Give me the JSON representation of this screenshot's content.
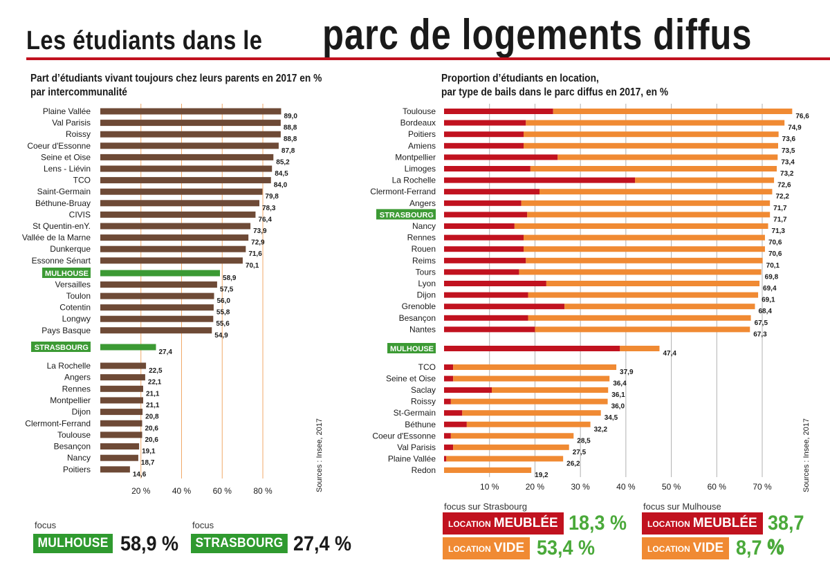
{
  "title": {
    "part1": "Les étudiants dans le",
    "part2": "parc de logements diffus"
  },
  "colors": {
    "brown": "#6e4a36",
    "green": "#3c9a34",
    "red": "#c1121f",
    "orange": "#f08a33",
    "valueGreen": "#4aa93a",
    "grid": "#f0a868",
    "grid2": "#b0b0b0"
  },
  "left_chart": {
    "subtitle_lines": [
      "Part d’étudiants vivant toujours chez leurs parents en 2017 en %",
      "par intercommunalité"
    ],
    "source": "Sources : Insee, 2017"
  },
  "right_chart": {
    "subtitle_lines": [
      "Proportion d’étudiants en location,",
      "par type de bails dans le parc diffus en 2017, en %"
    ],
    "source": "Sources : Insee, 2017"
  },
  "chart_data": [
    {
      "type": "bar",
      "orientation": "horizontal",
      "title": "Part d’étudiants vivant toujours chez leurs parents en 2017 en % par intercommunalité",
      "xlim": [
        0,
        100
      ],
      "xticks": [
        "20 %",
        "40 %",
        "60 %",
        "80 %"
      ],
      "xtick_values": [
        20,
        40,
        60,
        80
      ],
      "categories": [
        "Plaine Vallée",
        "Val Parisis",
        "Roissy",
        "Coeur d'Essonne",
        "Seine et Oise",
        "Lens - Liévin",
        "TCO",
        "Saint-Germain",
        "Béthune-Bruay",
        "CIVIS",
        "St Quentin-enY.",
        "Vallée de la Marne",
        "Dunkerque",
        "Essonne Sénart",
        "MULHOUSE",
        "Versailles",
        "Toulon",
        "Cotentin",
        "Longwy",
        "Pays Basque",
        "STRASBOURG",
        "La Rochelle",
        "Angers",
        "Rennes",
        "Montpellier",
        "Dijon",
        "Clermont-Ferrand",
        "Toulouse",
        "Besançon",
        "Nancy",
        "Poitiers"
      ],
      "values": [
        89.0,
        88.8,
        88.8,
        87.8,
        85.2,
        84.5,
        84.0,
        79.8,
        78.3,
        76.4,
        73.9,
        72.9,
        71.6,
        70.1,
        58.9,
        57.5,
        56.0,
        55.8,
        55.6,
        54.9,
        27.4,
        22.5,
        22.1,
        21.1,
        21.1,
        20.8,
        20.6,
        20.6,
        19.1,
        18.7,
        14.6
      ],
      "value_labels": [
        "89,0",
        "88,8",
        "88,8",
        "87,8",
        "85,2",
        "84,5",
        "84,0",
        "79,8",
        "78,3",
        "76,4",
        "73,9",
        "72,9",
        "71,6",
        "70,1",
        "58,9",
        "57,5",
        "56,0",
        "55,8",
        "55,6",
        "54,9",
        "27,4",
        "22,5",
        "22,1",
        "21,1",
        "21,1",
        "20,8",
        "20,6",
        "20,6",
        "19,1",
        "18,7",
        "14,6"
      ],
      "highlighted": [
        "MULHOUSE",
        "STRASBOURG"
      ]
    },
    {
      "type": "bar",
      "orientation": "horizontal",
      "stacked": true,
      "title": "Proportion d’étudiants en location, par type de bails dans le parc diffus en 2017, en %",
      "xlim": [
        0,
        80
      ],
      "xticks": [
        "10 %",
        "20 %",
        "30 %",
        "40 %",
        "50 %",
        "60 %",
        "70 %"
      ],
      "xtick_values": [
        10,
        20,
        30,
        40,
        50,
        60,
        70
      ],
      "categories": [
        "Toulouse",
        "Bordeaux",
        "Poitiers",
        "Amiens",
        "Montpellier",
        "Limoges",
        "La Rochelle",
        "Clermont-Ferrand",
        "Angers",
        "STRASBOURG",
        "Nancy",
        "Rennes",
        "Rouen",
        "Reims",
        "Tours",
        "Lyon",
        "Dijon",
        "Grenoble",
        "Besançon",
        "Nantes",
        "MULHOUSE",
        "TCO",
        "Seine et Oise",
        "Saclay",
        "Roissy",
        "St-Germain",
        "Béthune",
        "Coeur d'Essonne",
        "Val Parisis",
        "Plaine Vallée",
        "Redon"
      ],
      "series": [
        {
          "name": "Location meublée",
          "values": [
            24.0,
            18.0,
            17.5,
            17.5,
            25.0,
            19.0,
            42.0,
            21.0,
            17.0,
            18.3,
            15.5,
            17.5,
            17.5,
            18.0,
            16.5,
            22.5,
            18.5,
            26.5,
            18.5,
            20.0,
            38.7,
            2.0,
            2.0,
            10.5,
            1.5,
            4.0,
            5.0,
            1.5,
            2.0,
            0.5,
            0.0
          ]
        },
        {
          "name": "Location vide",
          "values": [
            52.6,
            56.9,
            56.1,
            56.0,
            48.4,
            54.2,
            30.6,
            51.2,
            54.7,
            53.4,
            55.8,
            53.1,
            53.1,
            52.1,
            53.3,
            46.9,
            50.6,
            41.9,
            49.0,
            47.3,
            8.7,
            35.9,
            34.4,
            25.6,
            34.5,
            30.5,
            27.2,
            27.0,
            25.5,
            25.7,
            19.2
          ]
        }
      ],
      "totals": [
        76.6,
        74.9,
        73.6,
        73.5,
        73.4,
        73.2,
        72.6,
        72.2,
        71.7,
        71.7,
        71.3,
        70.6,
        70.6,
        70.1,
        69.8,
        69.4,
        69.1,
        68.4,
        67.5,
        67.3,
        47.4,
        37.9,
        36.4,
        36.1,
        36.0,
        34.5,
        32.2,
        28.5,
        27.5,
        26.2,
        19.2
      ],
      "total_labels": [
        "76,6",
        "74,9",
        "73,6",
        "73,5",
        "73,4",
        "73,2",
        "72,6",
        "72,2",
        "71,7",
        "71,7",
        "71,3",
        "70,6",
        "70,6",
        "70,1",
        "69,8",
        "69,4",
        "69,1",
        "68,4",
        "67,5",
        "67,3",
        "47,4",
        "37,9",
        "36,4",
        "36,1",
        "36,0",
        "34,5",
        "32,2",
        "28,5",
        "27,5",
        "26,2",
        "19,2"
      ],
      "highlighted": [
        "STRASBOURG",
        "MULHOUSE"
      ]
    }
  ],
  "focus_left": [
    {
      "label": "focus",
      "city": "MULHOUSE",
      "value": "58,9 %"
    },
    {
      "label": "focus",
      "city": "STRASBOURG",
      "value": "27,4 %"
    }
  ],
  "focus_right": [
    {
      "label": "focus sur Strasbourg",
      "meublee_small": "LOCATION",
      "meublee_big": "MEUBLÉE",
      "meublee_value": "18,3 %",
      "vide_small": "LOCATION",
      "vide_big": "VIDE",
      "vide_value": "53,4 %"
    },
    {
      "label": "focus sur Mulhouse",
      "meublee_small": "LOCATION",
      "meublee_big": "MEUBLÉE",
      "meublee_value": "38,7 %",
      "vide_small": "LOCATION",
      "vide_big": "VIDE",
      "vide_value": "8,7 %"
    }
  ]
}
